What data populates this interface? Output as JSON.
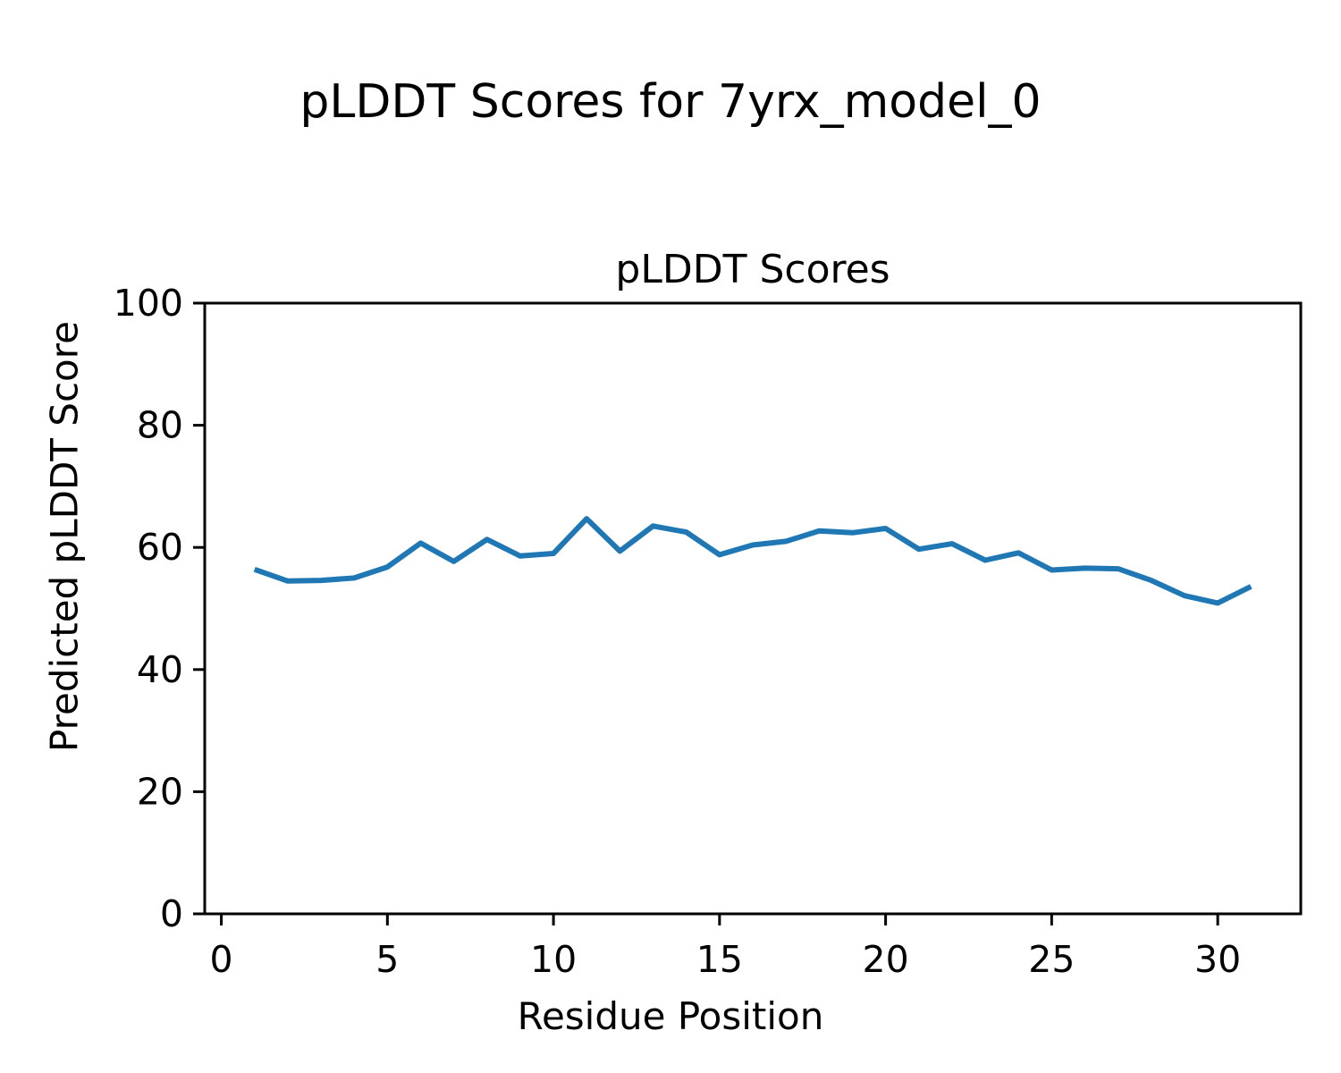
{
  "figure": {
    "suptitle": "pLDDT Scores for 7yrx_model_0"
  },
  "chart_data": {
    "type": "line",
    "title": "pLDDT Scores",
    "xlabel": "Residue Position",
    "ylabel": "Predicted pLDDT Score",
    "x": [
      1,
      2,
      3,
      4,
      5,
      6,
      7,
      8,
      9,
      10,
      11,
      12,
      13,
      14,
      15,
      16,
      17,
      18,
      19,
      20,
      21,
      22,
      23,
      24,
      25,
      26,
      27,
      28,
      29,
      30,
      31
    ],
    "series": [
      {
        "name": "pLDDT",
        "values": [
          56.4,
          54.5,
          54.6,
          55.0,
          56.8,
          60.7,
          57.7,
          61.3,
          58.6,
          59.0,
          64.7,
          59.4,
          63.5,
          62.5,
          58.8,
          60.4,
          61.0,
          62.7,
          62.4,
          63.1,
          59.7,
          60.6,
          57.9,
          59.1,
          56.3,
          56.6,
          56.5,
          54.6,
          52.1,
          50.9,
          53.6
        ]
      }
    ],
    "xlim": [
      -0.5,
      32.5
    ],
    "ylim": [
      0,
      100
    ],
    "x_ticks": [
      0,
      5,
      10,
      15,
      20,
      25,
      30
    ],
    "y_ticks": [
      0,
      20,
      40,
      60,
      80,
      100
    ],
    "grid": false,
    "legend": "none",
    "line_color": "#1f77b4",
    "axis_color": "#000000",
    "background_color": "#ffffff"
  }
}
